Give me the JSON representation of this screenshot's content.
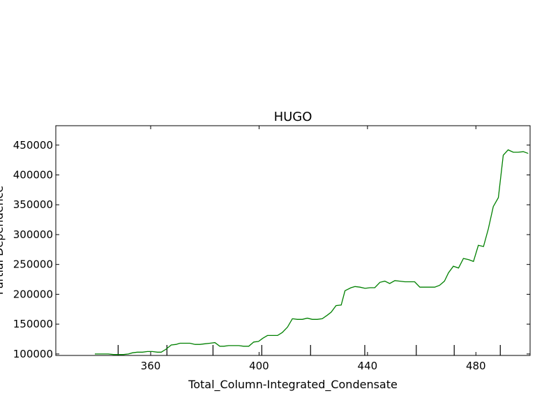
{
  "chart_data": {
    "type": "line",
    "title": "HUGO",
    "xlabel": "Total_Column-Integrated_Condensate",
    "ylabel": "Partial Dependence",
    "xlim": [
      325,
      500
    ],
    "ylim": [
      97500,
      482500
    ],
    "xticks": [
      360,
      400,
      440,
      480
    ],
    "yticks": [
      100000,
      150000,
      200000,
      250000,
      300000,
      350000,
      400000,
      450000
    ],
    "grid": false,
    "line_color": "#008000",
    "rug_x": [
      348,
      366,
      383,
      401,
      419,
      439,
      458,
      472,
      489
    ],
    "series": [
      {
        "x": [
          339.4,
          341.2,
          342.6,
          344.4,
          346.3,
          348.5,
          350.0,
          351.8,
          353.3,
          355.1,
          357.0,
          358.8,
          360.6,
          362.5,
          363.9,
          365.7,
          367.6,
          369.4,
          370.8,
          372.7,
          374.5,
          376.4,
          378.2,
          380.0,
          381.9,
          383.7,
          385.5,
          387.0,
          388.8,
          390.7,
          392.5,
          394.3,
          396.2,
          398.0,
          399.8,
          401.3,
          403.1,
          405.0,
          406.8,
          408.6,
          410.5,
          412.3,
          414.1,
          416.0,
          417.8,
          419.6,
          421.5,
          423.3,
          425.2,
          426.6,
          428.4,
          430.3,
          431.7,
          433.9,
          435.4,
          437.2,
          439.1,
          440.9,
          442.7,
          444.6,
          446.4,
          448.2,
          450.1,
          451.9,
          453.8,
          455.6,
          457.4,
          459.3,
          461.1,
          462.9,
          464.8,
          466.6,
          468.4,
          469.9,
          471.7,
          473.6,
          475.4,
          477.3,
          479.1,
          480.9,
          482.8,
          484.6,
          486.4,
          488.3,
          490.1,
          491.9,
          493.8,
          495.6,
          497.5,
          499.3
        ],
        "y": [
          100000,
          100000,
          100000,
          100000,
          99000,
          99000,
          99000,
          100000,
          102000,
          103000,
          103000,
          104000,
          104000,
          103000,
          103000,
          108000,
          115000,
          116000,
          118000,
          118000,
          118000,
          116000,
          116000,
          117000,
          118000,
          119000,
          113000,
          113000,
          114000,
          114000,
          114000,
          113000,
          113000,
          120000,
          121000,
          126000,
          131000,
          131000,
          131000,
          136000,
          145000,
          159000,
          158000,
          158000,
          160000,
          158000,
          158000,
          159000,
          165000,
          170000,
          181000,
          182000,
          206000,
          211000,
          213000,
          212000,
          210000,
          211000,
          211000,
          220000,
          222000,
          218000,
          223000,
          222000,
          221000,
          221000,
          221000,
          212000,
          212000,
          212000,
          212000,
          215000,
          222000,
          236000,
          247000,
          244000,
          260000,
          258000,
          255000,
          282000,
          280000,
          310000,
          347000,
          362000,
          433000,
          442000,
          438000,
          438000,
          439000,
          436000
        ]
      }
    ]
  }
}
